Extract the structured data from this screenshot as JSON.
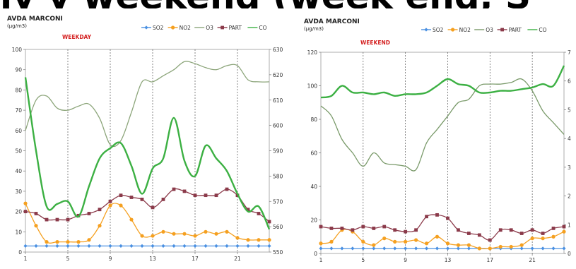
{
  "banner_text": "ly y weekend (week end, S",
  "chart_data": [
    {
      "type": "line",
      "title": "AVDA MARCONI",
      "unit": "(µg/m3)",
      "subtitle": "WEEKDAY",
      "x": [
        1,
        2,
        3,
        4,
        5,
        6,
        7,
        8,
        9,
        10,
        11,
        12,
        13,
        14,
        15,
        16,
        17,
        18,
        19,
        20,
        21,
        22,
        23,
        24
      ],
      "xticks": [
        1,
        5,
        9,
        13,
        17,
        21
      ],
      "ylim": [
        0,
        100
      ],
      "yticks": [
        0,
        10,
        20,
        30,
        40,
        50,
        60,
        70,
        80,
        90,
        100
      ],
      "y2lim": [
        550,
        630
      ],
      "y2ticks": [
        550,
        560,
        570,
        580,
        590,
        600,
        610,
        620,
        630
      ],
      "grid_x": [
        5,
        9,
        13,
        17,
        21
      ],
      "legend_position": "top-right",
      "series": [
        {
          "name": "SO2",
          "color": "#4a90e2",
          "marker": "diamond",
          "axis": "left",
          "values": [
            3,
            3,
            3,
            3,
            3,
            3,
            3,
            3,
            3,
            3,
            3,
            3,
            3,
            3,
            3,
            3,
            3,
            3,
            3,
            3,
            3,
            3,
            3,
            3
          ]
        },
        {
          "name": "NO2",
          "color": "#f5a020",
          "marker": "circle",
          "axis": "left",
          "values": [
            24,
            13,
            5,
            5,
            5,
            5,
            6,
            13,
            23,
            23,
            16,
            8,
            8,
            10,
            9,
            9,
            8,
            10,
            9,
            10,
            7,
            6,
            6,
            6
          ]
        },
        {
          "name": "O3",
          "color": "#8ca57a",
          "marker": "none",
          "axis": "left",
          "values": [
            60,
            75,
            77,
            71,
            70,
            72,
            73,
            66,
            53,
            55,
            69,
            84,
            84,
            87,
            90,
            94,
            93,
            91,
            90,
            92,
            92,
            85,
            84,
            84
          ]
        },
        {
          "name": "PART",
          "color": "#8b3a4a",
          "marker": "square",
          "axis": "left",
          "values": [
            20,
            19,
            16,
            16,
            16,
            18,
            19,
            21,
            25,
            28,
            27,
            26,
            22,
            26,
            31,
            30,
            28,
            28,
            28,
            31,
            28,
            21,
            19,
            15
          ]
        },
        {
          "name": "CO",
          "color": "#3cb043",
          "marker": "none",
          "axis": "right",
          "values": [
            619,
            590,
            568,
            569,
            570,
            564,
            576,
            587,
            591,
            593,
            584,
            573,
            583,
            587,
            603,
            586,
            580,
            592,
            587,
            582,
            573,
            566,
            568,
            559
          ]
        }
      ]
    },
    {
      "type": "line",
      "title": "AVDA MARCONI",
      "unit": "(µg/m3)",
      "subtitle": "WEEKEND",
      "x": [
        1,
        2,
        3,
        4,
        5,
        6,
        7,
        8,
        9,
        10,
        11,
        12,
        13,
        14,
        15,
        16,
        17,
        18,
        19,
        20,
        21,
        22,
        23,
        24
      ],
      "xticks": [
        1,
        5,
        9,
        13,
        17,
        21
      ],
      "ylim": [
        0,
        120
      ],
      "yticks": [
        0,
        20,
        40,
        60,
        80,
        100,
        120
      ],
      "y2ticks": [
        0,
        1,
        2,
        3,
        4,
        5,
        6,
        7
      ],
      "grid_x": [
        5,
        9,
        13,
        17,
        21
      ],
      "legend_position": "top-right",
      "series": [
        {
          "name": "SO2",
          "color": "#4a90e2",
          "marker": "diamond",
          "axis": "left",
          "values": [
            3,
            3,
            3,
            3,
            3,
            3,
            3,
            3,
            3,
            3,
            3,
            3,
            3,
            3,
            3,
            3,
            3,
            3,
            3,
            3,
            3,
            3,
            3,
            3
          ]
        },
        {
          "name": "NO2",
          "color": "#f5a020",
          "marker": "circle",
          "axis": "left",
          "values": [
            6,
            7,
            14,
            13,
            7,
            5,
            9,
            7,
            7,
            8,
            6,
            10,
            6,
            5,
            5,
            3,
            3,
            4,
            4,
            5,
            9,
            9,
            10,
            13
          ]
        },
        {
          "name": "O3",
          "color": "#7a9a6a",
          "marker": "none",
          "axis": "left",
          "values": [
            88,
            82,
            68,
            60,
            52,
            60,
            54,
            53,
            52,
            50,
            66,
            74,
            82,
            90,
            92,
            100,
            101,
            101,
            102,
            104,
            97,
            85,
            78,
            71
          ]
        },
        {
          "name": "PART",
          "color": "#8b3a4a",
          "marker": "square",
          "axis": "left",
          "values": [
            16,
            15,
            15,
            14,
            16,
            15,
            16,
            14,
            13,
            14,
            22,
            23,
            21,
            14,
            12,
            11,
            8,
            14,
            14,
            12,
            14,
            12,
            15,
            16
          ]
        },
        {
          "name": "CO",
          "color": "#3cb043",
          "marker": "none",
          "axis": "left",
          "values": [
            93,
            94,
            100,
            96,
            96,
            95,
            96,
            94,
            95,
            95,
            96,
            100,
            104,
            101,
            100,
            96,
            96,
            97,
            97,
            98,
            99,
            101,
            100,
            112
          ]
        }
      ]
    }
  ]
}
